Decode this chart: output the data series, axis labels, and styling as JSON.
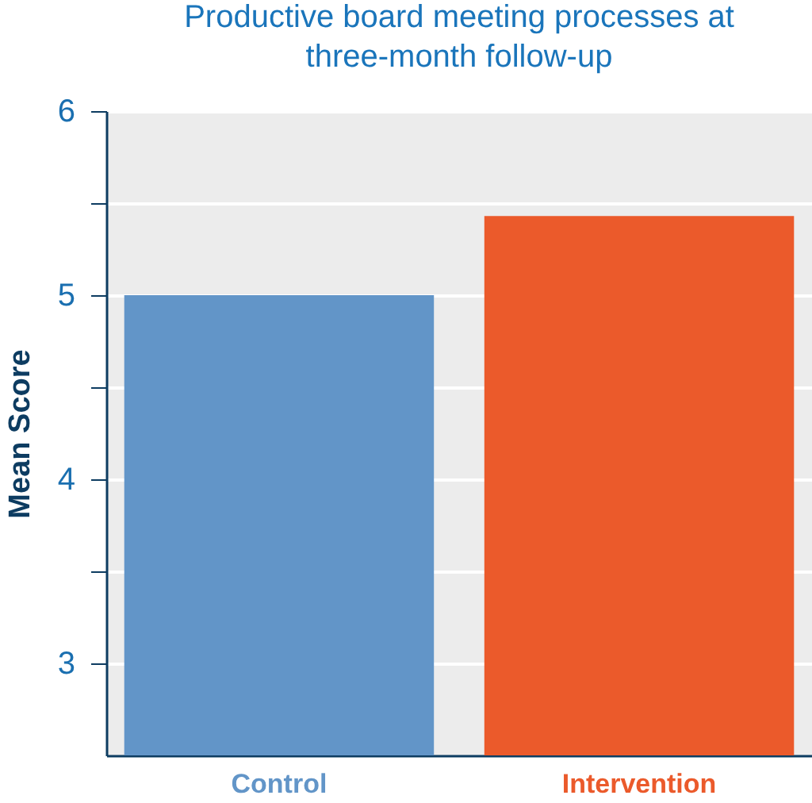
{
  "chart_data": {
    "type": "bar",
    "title": "Productive board meeting processes at\nthree-month follow-up",
    "ylabel": "Mean Score",
    "categories": [
      "Control",
      "Intervention"
    ],
    "values": [
      5.0,
      5.43
    ],
    "colors": [
      "#6295c8",
      "#eb5a2b"
    ],
    "ylim": [
      2.5,
      6
    ],
    "yticks": [
      {
        "value": 3,
        "label": "3"
      },
      {
        "value": 3.5,
        "label": null
      },
      {
        "value": 4,
        "label": "4"
      },
      {
        "value": 4.5,
        "label": null
      },
      {
        "value": 5,
        "label": "5"
      },
      {
        "value": 5.5,
        "label": null
      },
      {
        "value": 6,
        "label": "6"
      }
    ],
    "grid": "y"
  }
}
